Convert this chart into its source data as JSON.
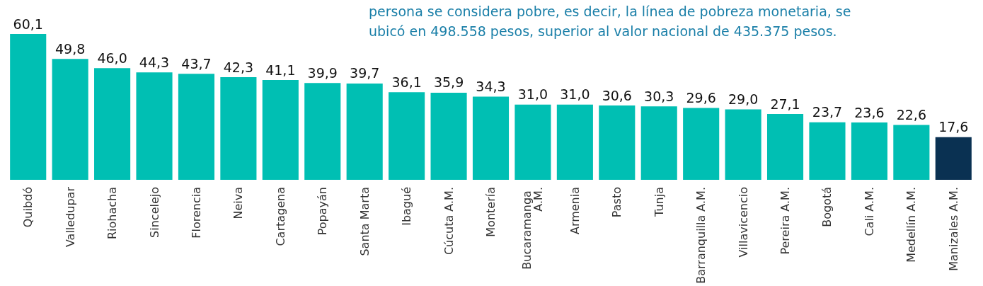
{
  "chart_data": {
    "type": "bar",
    "categories": [
      "Quibdó",
      "Valledupar",
      "Riohacha",
      "Sincelejo",
      "Florencia",
      "Neiva",
      "Cartagena",
      "Popayán",
      "Santa Marta",
      "Ibagué",
      "Cúcuta A.M.",
      "Montería",
      "Bucaramanga A.M.",
      "Armenia",
      "Pasto",
      "Tunja",
      "Barranquilla A.M.",
      "Villavicencio",
      "Pereira A.M.",
      "Bogotá",
      "Cali A.M.",
      "Medellín A.M.",
      "Manizales A.M."
    ],
    "values": [
      60.1,
      49.8,
      46.0,
      44.3,
      43.7,
      42.3,
      41.1,
      39.9,
      39.7,
      36.1,
      35.9,
      34.3,
      31.0,
      31.0,
      30.6,
      30.3,
      29.6,
      29.0,
      27.1,
      23.7,
      23.6,
      22.6,
      17.6
    ],
    "colors": [
      "#00bfb3",
      "#00bfb3",
      "#00bfb3",
      "#00bfb3",
      "#00bfb3",
      "#00bfb3",
      "#00bfb3",
      "#00bfb3",
      "#00bfb3",
      "#00bfb3",
      "#00bfb3",
      "#00bfb3",
      "#00bfb3",
      "#00bfb3",
      "#00bfb3",
      "#00bfb3",
      "#00bfb3",
      "#00bfb3",
      "#00bfb3",
      "#00bfb3",
      "#00bfb3",
      "#00bfb3",
      "#0a3152"
    ],
    "value_labels": [
      "60,1",
      "49,8",
      "46,0",
      "44,3",
      "43,7",
      "42,3",
      "41,1",
      "39,9",
      "39,7",
      "36,1",
      "35,9",
      "34,3",
      "31,0",
      "31,0",
      "30,6",
      "30,3",
      "29,6",
      "29,0",
      "27,1",
      "23,7",
      "23,6",
      "22,6",
      "17,6"
    ],
    "annotations": [
      "persona se considera pobre, es decir, la línea de pobreza monetaria, se ubicó en 498.558 pesos, superior al valor nacional de 435.375 pesos."
    ]
  }
}
